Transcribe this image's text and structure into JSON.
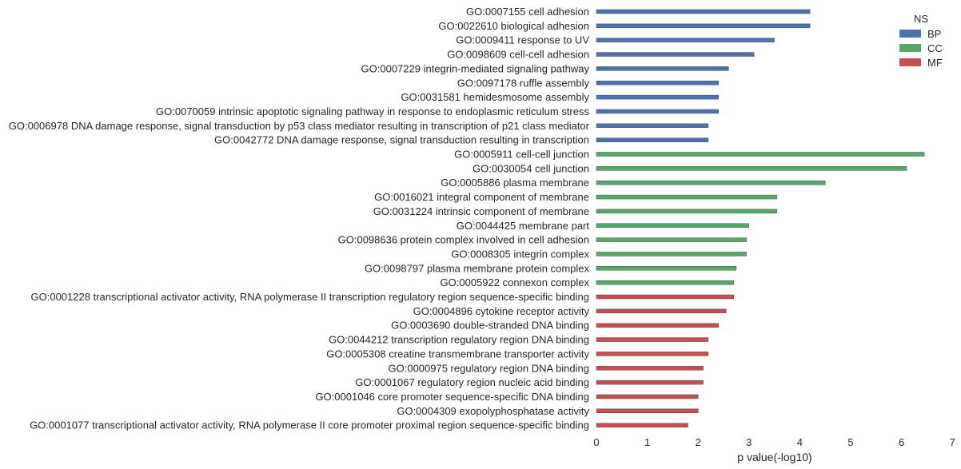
{
  "chart_data": {
    "type": "bar",
    "orientation": "horizontal",
    "xlabel": "p value(-log10)",
    "xlim": [
      0,
      7
    ],
    "xticks": [
      "0",
      "1",
      "2",
      "3",
      "4",
      "5",
      "6",
      "7"
    ],
    "grid": false,
    "legend": {
      "title": "NS",
      "placement": "top-right",
      "entries": [
        {
          "name": "BP",
          "color": "#4c72b0"
        },
        {
          "name": "CC",
          "color": "#55a868"
        },
        {
          "name": "MF",
          "color": "#c44e52"
        }
      ]
    },
    "bars": [
      {
        "label": "GO:0007155 cell adhesion",
        "group": "BP",
        "value": 4.2
      },
      {
        "label": "GO:0022610 biological adhesion",
        "group": "BP",
        "value": 4.2
      },
      {
        "label": "GO:0009411 response to UV",
        "group": "BP",
        "value": 3.5
      },
      {
        "label": "GO:0098609 cell-cell adhesion",
        "group": "BP",
        "value": 3.1
      },
      {
        "label": "GO:0007229 integrin-mediated signaling pathway",
        "group": "BP",
        "value": 2.6
      },
      {
        "label": "GO:0097178 ruffle assembly",
        "group": "BP",
        "value": 2.4
      },
      {
        "label": "GO:0031581 hemidesmosome assembly",
        "group": "BP",
        "value": 2.4
      },
      {
        "label": "GO:0070059 intrinsic apoptotic signaling pathway in response to endoplasmic reticulum stress",
        "group": "BP",
        "value": 2.4
      },
      {
        "label": "GO:0006978 DNA damage response, signal transduction by p53 class mediator resulting in transcription of p21 class mediator",
        "group": "BP",
        "value": 2.2
      },
      {
        "label": "GO:0042772 DNA damage response, signal transduction resulting in transcription",
        "group": "BP",
        "value": 2.2
      },
      {
        "label": "GO:0005911 cell-cell junction",
        "group": "CC",
        "value": 6.45
      },
      {
        "label": "GO:0030054 cell junction",
        "group": "CC",
        "value": 6.1
      },
      {
        "label": "GO:0005886 plasma membrane",
        "group": "CC",
        "value": 4.5
      },
      {
        "label": "GO:0016021 integral component of membrane",
        "group": "CC",
        "value": 3.55
      },
      {
        "label": "GO:0031224 intrinsic component of membrane",
        "group": "CC",
        "value": 3.55
      },
      {
        "label": "GO:0044425 membrane part",
        "group": "CC",
        "value": 3.0
      },
      {
        "label": "GO:0098636 protein complex involved in cell adhesion",
        "group": "CC",
        "value": 2.95
      },
      {
        "label": "GO:0008305 integrin complex",
        "group": "CC",
        "value": 2.95
      },
      {
        "label": "GO:0098797 plasma membrane protein complex",
        "group": "CC",
        "value": 2.75
      },
      {
        "label": "GO:0005922 connexon complex",
        "group": "CC",
        "value": 2.7
      },
      {
        "label": "GO:0001228 transcriptional activator activity, RNA polymerase II transcription regulatory region sequence-specific binding",
        "group": "MF",
        "value": 2.7
      },
      {
        "label": "GO:0004896 cytokine receptor activity",
        "group": "MF",
        "value": 2.55
      },
      {
        "label": "GO:0003690 double-stranded DNA binding",
        "group": "MF",
        "value": 2.4
      },
      {
        "label": "GO:0044212 transcription regulatory region DNA binding",
        "group": "MF",
        "value": 2.2
      },
      {
        "label": "GO:0005308 creatine transmembrane transporter activity",
        "group": "MF",
        "value": 2.2
      },
      {
        "label": "GO:0000975 regulatory region DNA binding",
        "group": "MF",
        "value": 2.1
      },
      {
        "label": "GO:0001067 regulatory region nucleic acid binding",
        "group": "MF",
        "value": 2.1
      },
      {
        "label": "GO:0001046 core promoter sequence-specific DNA binding",
        "group": "MF",
        "value": 2.0
      },
      {
        "label": "GO:0004309 exopolyphosphatase activity",
        "group": "MF",
        "value": 2.0
      },
      {
        "label": "GO:0001077 transcriptional activator activity, RNA polymerase II core promoter proximal region sequence-specific binding",
        "group": "MF",
        "value": 1.8
      }
    ]
  }
}
